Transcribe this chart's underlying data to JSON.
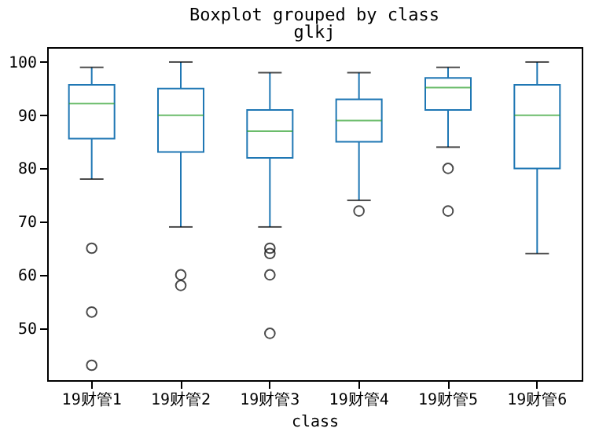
{
  "chart_data": {
    "type": "box",
    "title": "Boxplot grouped by class",
    "subtitle": "glkj",
    "xlabel": "class",
    "categories": [
      "19财管1",
      "19财管2",
      "19财管3",
      "19财管4",
      "19财管5",
      "19财管6"
    ],
    "ylim": [
      40.2,
      102.8
    ],
    "yticks": [
      50,
      60,
      70,
      80,
      90,
      100
    ],
    "grid": false,
    "boxes": [
      {
        "low": 78,
        "q1": 85.6,
        "median": 92.2,
        "q3": 95.7,
        "high": 99,
        "outliers": [
          65,
          53,
          43
        ]
      },
      {
        "low": 69,
        "q1": 83.1,
        "median": 90,
        "q3": 95,
        "high": 100,
        "outliers": [
          60,
          58
        ]
      },
      {
        "low": 69,
        "q1": 82,
        "median": 87,
        "q3": 91,
        "high": 98,
        "outliers": [
          65,
          64,
          60,
          49
        ]
      },
      {
        "low": 74,
        "q1": 85,
        "median": 89,
        "q3": 93,
        "high": 98,
        "outliers": [
          72
        ]
      },
      {
        "low": 84,
        "q1": 91,
        "median": 95.2,
        "q3": 97,
        "high": 99,
        "outliers": [
          80,
          72
        ]
      },
      {
        "low": 64,
        "q1": 80,
        "median": 90,
        "q3": 95.7,
        "high": 100
      }
    ]
  }
}
